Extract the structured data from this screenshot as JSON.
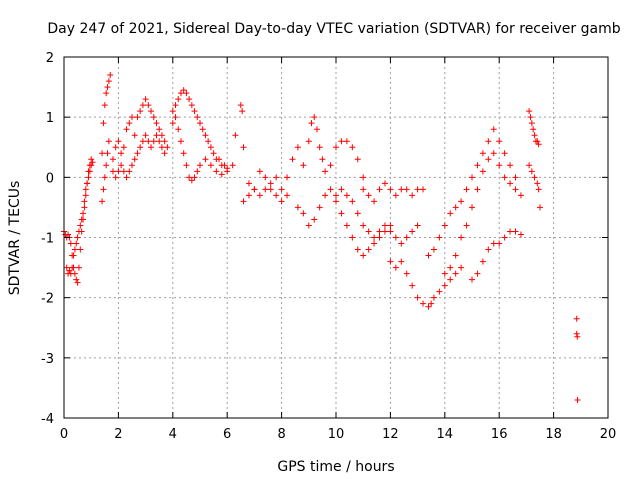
{
  "chart_data": {
    "type": "scatter",
    "title": "Day 247 of 2021, Sidereal Day-to-day VTEC variation (SDTVAR) for receiver gamb",
    "xlabel": "GPS time / hours",
    "ylabel": "SDTVAR / TECUs",
    "xlim": [
      0,
      20
    ],
    "ylim": [
      -4,
      2
    ],
    "xticks": [
      "0",
      "2",
      "4",
      "6",
      "8",
      "10",
      "12",
      "14",
      "16",
      "18",
      "20"
    ],
    "yticks": [
      "2",
      "1",
      "0",
      "-1",
      "-2",
      "-3",
      "-4"
    ],
    "grid": true,
    "marker": "+",
    "color": "#ff0000",
    "series": [
      {
        "name": "SDTVAR",
        "x": [
          0.0,
          0.05,
          0.1,
          0.15,
          0.2,
          0.25,
          0.3,
          0.35,
          0.4,
          0.45,
          0.5,
          0.55,
          0.6,
          0.65,
          0.7,
          0.75,
          0.8,
          0.85,
          0.9,
          0.95,
          1.0,
          0.1,
          0.15,
          0.2,
          0.25,
          0.3,
          0.35,
          0.4,
          0.45,
          0.5,
          0.55,
          0.6,
          0.65,
          0.7,
          0.75,
          0.8,
          0.85,
          0.9,
          0.95,
          1.0,
          1.05,
          1.4,
          1.45,
          1.5,
          1.55,
          1.6,
          1.65,
          1.7,
          1.4,
          1.45,
          1.5,
          1.55,
          1.6,
          1.65,
          1.8,
          1.9,
          2.0,
          2.1,
          2.2,
          2.3,
          2.4,
          2.5,
          2.6,
          2.7,
          2.8,
          2.9,
          3.0,
          3.1,
          3.2,
          3.3,
          3.4,
          3.5,
          3.6,
          3.7,
          3.8,
          1.8,
          1.9,
          2.0,
          2.1,
          2.2,
          2.3,
          2.4,
          2.5,
          2.6,
          2.7,
          2.8,
          2.9,
          3.0,
          3.1,
          3.2,
          3.3,
          3.4,
          3.5,
          3.6,
          3.7,
          4.0,
          4.1,
          4.2,
          4.3,
          4.4,
          4.5,
          4.6,
          4.7,
          4.8,
          4.9,
          5.0,
          5.1,
          5.2,
          5.3,
          5.4,
          5.5,
          5.6,
          5.7,
          5.8,
          5.9,
          6.0,
          4.0,
          4.1,
          4.2,
          4.3,
          4.4,
          4.5,
          4.6,
          4.7,
          4.8,
          4.9,
          5.0,
          5.2,
          5.4,
          5.6,
          5.8,
          6.0,
          6.2,
          6.3,
          6.5,
          6.55,
          6.6,
          6.8,
          7.0,
          7.2,
          7.4,
          7.6,
          7.8,
          8.0,
          8.2,
          6.6,
          6.8,
          7.0,
          7.2,
          7.4,
          7.6,
          7.8,
          8.0,
          8.2,
          8.4,
          8.6,
          8.8,
          9.0,
          9.1,
          9.2,
          9.3,
          9.4,
          9.5,
          9.6,
          9.8,
          10.0,
          10.2,
          10.4,
          10.6,
          10.8,
          11.0,
          8.6,
          8.8,
          9.0,
          9.2,
          9.4,
          9.6,
          9.8,
          10.0,
          10.2,
          10.4,
          10.6,
          10.8,
          11.0,
          11.2,
          11.4,
          11.6,
          11.8,
          12.0,
          10.0,
          10.2,
          10.4,
          10.6,
          10.8,
          11.0,
          11.2,
          11.4,
          11.6,
          11.8,
          12.0,
          12.2,
          12.4,
          12.6,
          12.8,
          13.0,
          11.0,
          11.2,
          11.4,
          11.6,
          11.8,
          12.0,
          12.2,
          12.4,
          12.6,
          12.8,
          13.0,
          13.2,
          12.0,
          12.2,
          12.4,
          12.6,
          12.8,
          13.0,
          13.2,
          13.4,
          13.5,
          13.6,
          13.8,
          14.0,
          14.2,
          14.4,
          14.6,
          13.4,
          13.6,
          13.8,
          14.0,
          14.2,
          14.4,
          14.6,
          14.8,
          15.0,
          15.2,
          15.4,
          15.6,
          15.8,
          16.0,
          16.2,
          16.4,
          16.6,
          14.0,
          14.2,
          14.4,
          14.6,
          14.8,
          15.0,
          15.2,
          15.4,
          15.6,
          15.8,
          16.0,
          16.2,
          16.4,
          16.6,
          16.8,
          15.0,
          15.2,
          15.4,
          15.6,
          15.8,
          16.0,
          16.2,
          16.4,
          16.6,
          16.8,
          17.1,
          17.15,
          17.2,
          17.25,
          17.3,
          17.35,
          17.4,
          17.45,
          17.1,
          17.2,
          17.3,
          17.4,
          17.45,
          17.5,
          18.85,
          18.85,
          18.87,
          18.88
        ],
        "y": [
          -0.9,
          -0.95,
          -1.0,
          -0.95,
          -1.0,
          -1.1,
          -1.3,
          -1.5,
          -1.6,
          -1.7,
          -1.75,
          -1.5,
          -1.2,
          -0.9,
          -0.7,
          -0.5,
          -0.3,
          -0.1,
          0.1,
          0.2,
          0.3,
          -1.5,
          -1.6,
          -1.55,
          -1.6,
          -1.5,
          -1.3,
          -1.2,
          -1.1,
          -1.0,
          -0.9,
          -0.8,
          -0.7,
          -0.6,
          -0.4,
          -0.2,
          -0.1,
          0.0,
          0.1,
          0.2,
          0.25,
          0.4,
          0.9,
          1.2,
          1.4,
          1.5,
          1.6,
          1.7,
          -0.4,
          -0.2,
          0.0,
          0.2,
          0.4,
          0.6,
          0.3,
          0.5,
          0.6,
          0.4,
          0.5,
          0.8,
          0.9,
          1.0,
          0.7,
          1.0,
          1.1,
          1.2,
          1.3,
          1.2,
          1.1,
          1.0,
          0.9,
          0.8,
          0.7,
          0.6,
          0.5,
          0.1,
          0.0,
          0.1,
          0.2,
          0.1,
          0.0,
          0.1,
          0.2,
          0.3,
          0.4,
          0.5,
          0.6,
          0.7,
          0.6,
          0.5,
          0.6,
          0.7,
          0.6,
          0.5,
          0.4,
          1.1,
          1.2,
          1.3,
          1.4,
          1.45,
          1.4,
          1.3,
          1.2,
          1.1,
          1.0,
          0.9,
          0.8,
          0.7,
          0.6,
          0.5,
          0.4,
          0.3,
          0.3,
          0.2,
          0.2,
          0.15,
          0.9,
          1.0,
          0.8,
          0.6,
          0.4,
          0.2,
          0.0,
          -0.05,
          0.0,
          0.1,
          0.2,
          0.3,
          0.2,
          0.1,
          0.05,
          0.1,
          0.2,
          0.7,
          1.2,
          1.1,
          0.5,
          -0.1,
          -0.2,
          -0.3,
          -0.2,
          -0.1,
          0.0,
          -0.2,
          -0.3,
          -0.4,
          -0.3,
          -0.2,
          0.1,
          0.0,
          -0.2,
          -0.3,
          -0.4,
          0.0,
          0.3,
          0.5,
          0.2,
          0.6,
          0.9,
          1.0,
          0.8,
          0.5,
          0.3,
          0.1,
          0.2,
          0.5,
          0.6,
          0.6,
          0.5,
          0.3,
          0.0,
          -0.5,
          -0.6,
          -0.8,
          -0.7,
          -0.5,
          -0.3,
          -0.2,
          -0.4,
          -0.6,
          -0.8,
          -1.0,
          -1.2,
          -1.3,
          -1.2,
          -1.1,
          -1.0,
          -0.9,
          -0.8,
          -0.3,
          -0.2,
          -0.3,
          -0.4,
          -0.6,
          -0.8,
          -0.9,
          -1.0,
          -0.9,
          -0.8,
          -0.9,
          -1.0,
          -1.1,
          -1.0,
          -0.9,
          -0.8,
          -0.2,
          -0.3,
          -0.4,
          -0.2,
          -0.1,
          -0.2,
          -0.3,
          -0.2,
          -0.2,
          -0.3,
          -0.2,
          -0.2,
          -1.4,
          -1.5,
          -1.4,
          -1.6,
          -1.8,
          -2.0,
          -2.1,
          -2.15,
          -2.1,
          -2.0,
          -1.9,
          -1.8,
          -1.7,
          -1.6,
          -1.5,
          -1.3,
          -1.2,
          -1.0,
          -0.8,
          -0.6,
          -0.5,
          -0.4,
          -0.2,
          0.0,
          0.2,
          0.4,
          0.6,
          0.8,
          0.6,
          0.4,
          0.2,
          0.0,
          -1.6,
          -1.5,
          -1.3,
          -1.0,
          -0.8,
          -0.5,
          -0.2,
          0.1,
          0.3,
          0.4,
          0.2,
          0.0,
          -0.1,
          -0.2,
          -0.3,
          -1.7,
          -1.6,
          -1.4,
          -1.2,
          -1.1,
          -1.1,
          -1.0,
          -0.9,
          -0.9,
          -0.95,
          1.1,
          1.0,
          0.9,
          0.8,
          0.7,
          0.6,
          0.6,
          0.55,
          0.2,
          0.1,
          0.0,
          -0.1,
          -0.2,
          -0.5,
          -2.35,
          -2.6,
          -2.65,
          -3.7
        ]
      }
    ]
  }
}
